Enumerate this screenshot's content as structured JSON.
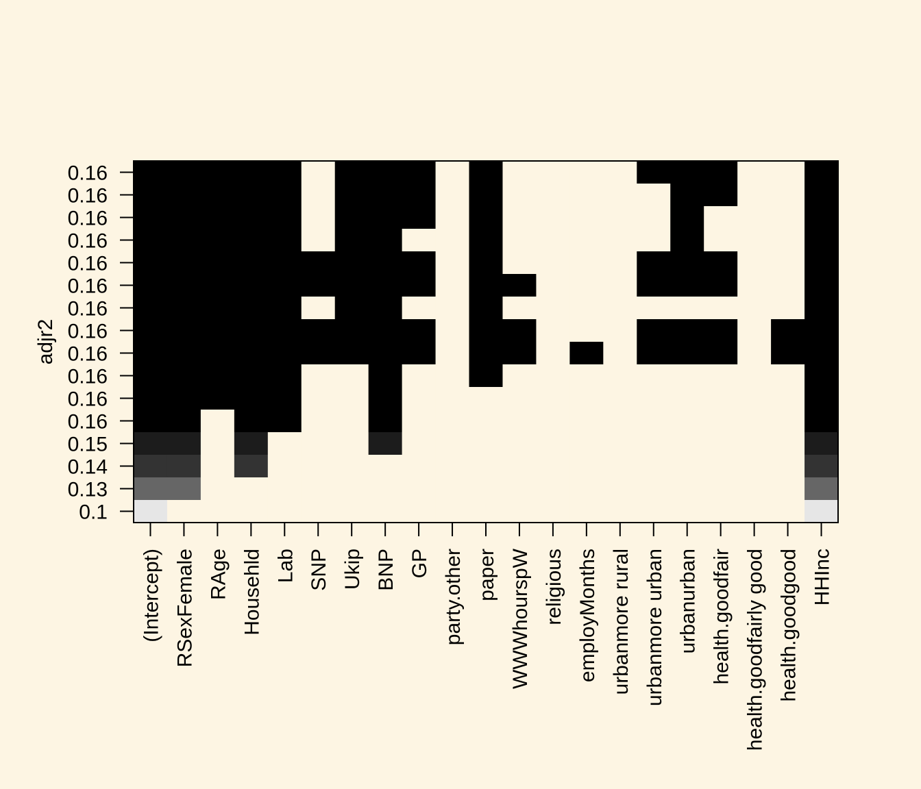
{
  "chart_data": {
    "type": "heatmap",
    "ylabel": "adjr2",
    "y_tick_labels": [
      "0.16",
      "0.16",
      "0.16",
      "0.16",
      "0.16",
      "0.16",
      "0.16",
      "0.16",
      "0.16",
      "0.16",
      "0.16",
      "0.16",
      "0.15",
      "0.14",
      "0.13",
      "0.1"
    ],
    "x_tick_labels": [
      "(Intercept)",
      "RSexFemale",
      "RAge",
      "Househld",
      "Lab",
      "SNP",
      "Ukip",
      "BNP",
      "GP",
      "party.other",
      "paper",
      "WWWhourspW",
      "religious",
      "employMonths",
      "urbanmore rural",
      "urbanmore urban",
      "urbanurban",
      "health.goodfair",
      "health.goodfairly good",
      "health.goodgood",
      "HHInc"
    ],
    "cell_colors": [
      "#000000",
      "#1C1C1C",
      "#333333",
      "#666666",
      "#E6E6E6"
    ],
    "empty_color": "#FDF5E3",
    "shade_by_row": [
      0,
      0,
      0,
      0,
      0,
      0,
      0,
      0,
      0,
      0,
      0,
      0,
      1,
      2,
      3,
      4
    ],
    "selected": [
      [
        1,
        1,
        1,
        1,
        1,
        0,
        1,
        1,
        1,
        0,
        1,
        0,
        0,
        0,
        0,
        1,
        1,
        1,
        0,
        0,
        1
      ],
      [
        1,
        1,
        1,
        1,
        1,
        0,
        1,
        1,
        1,
        0,
        1,
        0,
        0,
        0,
        0,
        0,
        1,
        1,
        0,
        0,
        1
      ],
      [
        1,
        1,
        1,
        1,
        1,
        0,
        1,
        1,
        1,
        0,
        1,
        0,
        0,
        0,
        0,
        0,
        1,
        0,
        0,
        0,
        1
      ],
      [
        1,
        1,
        1,
        1,
        1,
        0,
        1,
        1,
        0,
        0,
        1,
        0,
        0,
        0,
        0,
        0,
        1,
        0,
        0,
        0,
        1
      ],
      [
        1,
        1,
        1,
        1,
        1,
        1,
        1,
        1,
        1,
        0,
        1,
        0,
        0,
        0,
        0,
        1,
        1,
        1,
        0,
        0,
        1
      ],
      [
        1,
        1,
        1,
        1,
        1,
        1,
        1,
        1,
        1,
        0,
        1,
        1,
        0,
        0,
        0,
        1,
        1,
        1,
        0,
        0,
        1
      ],
      [
        1,
        1,
        1,
        1,
        1,
        0,
        1,
        1,
        0,
        0,
        1,
        0,
        0,
        0,
        0,
        0,
        0,
        0,
        0,
        0,
        1
      ],
      [
        1,
        1,
        1,
        1,
        1,
        1,
        1,
        1,
        1,
        0,
        1,
        1,
        0,
        0,
        0,
        1,
        1,
        1,
        0,
        1,
        1
      ],
      [
        1,
        1,
        1,
        1,
        1,
        1,
        1,
        1,
        1,
        0,
        1,
        1,
        0,
        1,
        0,
        1,
        1,
        1,
        0,
        1,
        1
      ],
      [
        1,
        1,
        1,
        1,
        1,
        0,
        0,
        1,
        0,
        0,
        1,
        0,
        0,
        0,
        0,
        0,
        0,
        0,
        0,
        0,
        1
      ],
      [
        1,
        1,
        1,
        1,
        1,
        0,
        0,
        1,
        0,
        0,
        0,
        0,
        0,
        0,
        0,
        0,
        0,
        0,
        0,
        0,
        1
      ],
      [
        1,
        1,
        0,
        1,
        1,
        0,
        0,
        1,
        0,
        0,
        0,
        0,
        0,
        0,
        0,
        0,
        0,
        0,
        0,
        0,
        1
      ],
      [
        1,
        1,
        0,
        1,
        0,
        0,
        0,
        1,
        0,
        0,
        0,
        0,
        0,
        0,
        0,
        0,
        0,
        0,
        0,
        0,
        1
      ],
      [
        1,
        1,
        0,
        1,
        0,
        0,
        0,
        0,
        0,
        0,
        0,
        0,
        0,
        0,
        0,
        0,
        0,
        0,
        0,
        0,
        1
      ],
      [
        1,
        1,
        0,
        0,
        0,
        0,
        0,
        0,
        0,
        0,
        0,
        0,
        0,
        0,
        0,
        0,
        0,
        0,
        0,
        0,
        1
      ],
      [
        1,
        0,
        0,
        0,
        0,
        0,
        0,
        0,
        0,
        0,
        0,
        0,
        0,
        0,
        0,
        0,
        0,
        0,
        0,
        0,
        1
      ]
    ]
  }
}
